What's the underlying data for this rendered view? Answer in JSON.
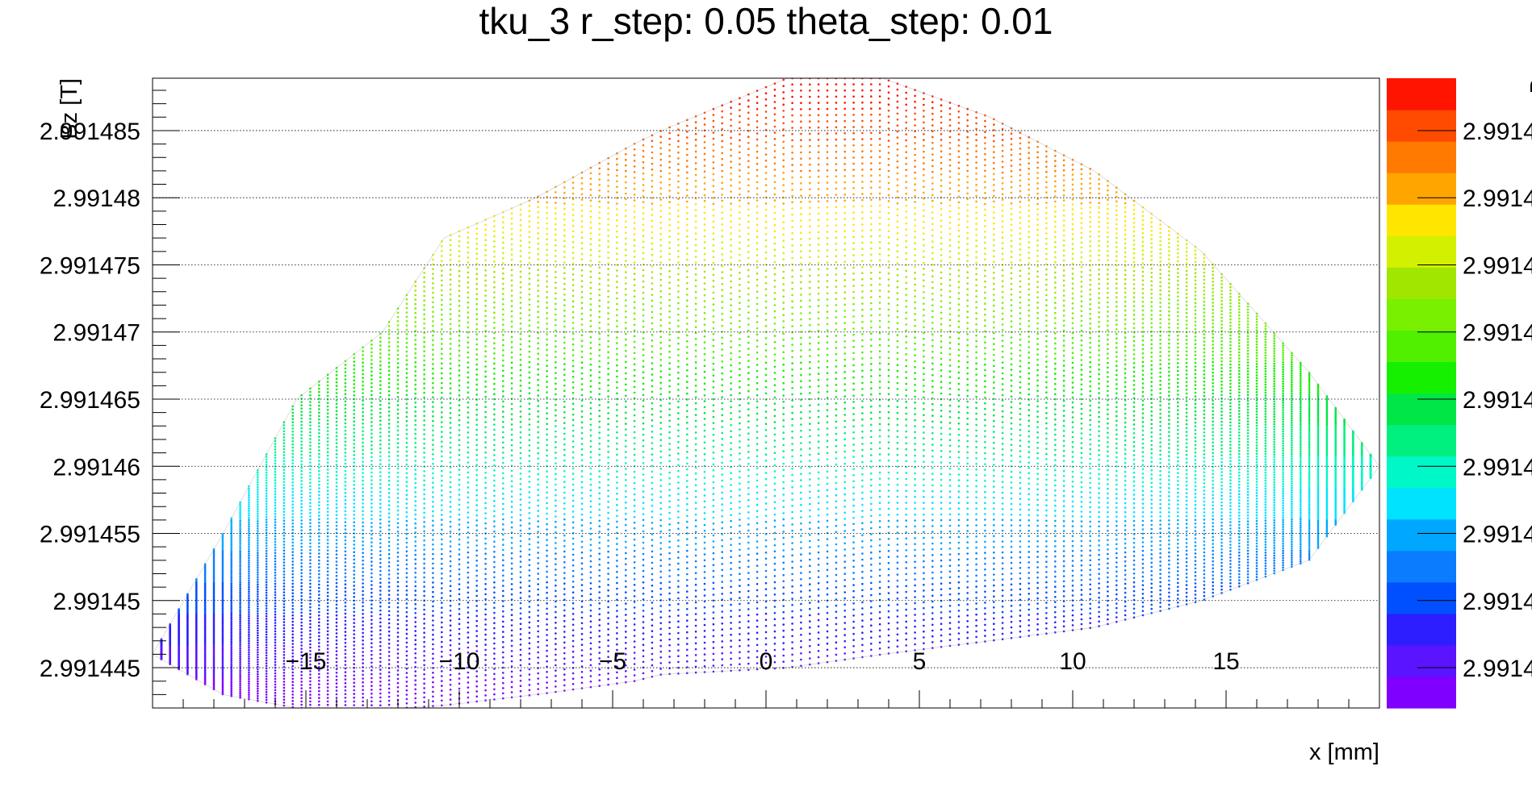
{
  "chart_data": {
    "type": "scatter",
    "title": "tku_3 r_step: 0.05 theta_step: 0.01",
    "xlabel": "x [mm]",
    "ylabel": "Bz [T]",
    "xlim": [
      -20,
      20
    ],
    "ylim": [
      2.991442,
      2.9914889
    ],
    "xticks": [
      {
        "value": -15,
        "label": "−15"
      },
      {
        "value": -10,
        "label": "−10"
      },
      {
        "value": -5,
        "label": "−5"
      },
      {
        "value": 0,
        "label": "0"
      },
      {
        "value": 5,
        "label": "5"
      },
      {
        "value": 10,
        "label": "10"
      },
      {
        "value": 15,
        "label": "15"
      }
    ],
    "yticks": [
      {
        "value": 2.991445,
        "label": "2.991445"
      },
      {
        "value": 2.99145,
        "label": "2.99145"
      },
      {
        "value": 2.991455,
        "label": "2.991455"
      },
      {
        "value": 2.99146,
        "label": "2.99146"
      },
      {
        "value": 2.991465,
        "label": "2.991465"
      },
      {
        "value": 2.99147,
        "label": "2.99147"
      },
      {
        "value": 2.991475,
        "label": "2.991475"
      },
      {
        "value": 2.99148,
        "label": "2.99148"
      },
      {
        "value": 2.991485,
        "label": "2.991485"
      }
    ],
    "grid": true,
    "colorbar": {
      "label": "B",
      "min": 2.991442,
      "max": 2.9914889,
      "tick_labels": [
        "2.9914",
        "2.9914",
        "2.9914",
        "2.9914",
        "2.9914",
        "2.9914",
        "2.9914",
        "2.9914",
        "2.9914"
      ],
      "colors": [
        "#7f00ff",
        "#5a14ff",
        "#2d1eff",
        "#0050ff",
        "#0a7dff",
        "#00a7ff",
        "#00e3ff",
        "#00f7c8",
        "#00f080",
        "#00e646",
        "#14f000",
        "#50f000",
        "#78f000",
        "#a0e600",
        "#d2f000",
        "#ffe600",
        "#ffa500",
        "#ff7a00",
        "#ff4b00",
        "#ff1400"
      ]
    },
    "envelope": {
      "x": [
        -20,
        -17.7,
        -15.3,
        -12.5,
        -10.5,
        -7.5,
        -4.3,
        -3.4,
        0.7,
        3.8,
        7.3,
        10.7,
        14.2,
        17.7,
        20
      ],
      "top": [
        2.991446,
        2.991455,
        2.991465,
        2.99147,
        2.991477,
        2.99148,
        2.991484,
        2.991485,
        2.9914889,
        2.9914889,
        2.991486,
        2.991482,
        2.991476,
        2.991467,
        2.99146
      ],
      "bottom": [
        2.991446,
        2.991443,
        2.991442,
        2.9914419,
        2.9914422,
        2.991443,
        2.991444,
        2.9914445,
        2.991445,
        2.991446,
        2.991447,
        2.991448,
        2.99145,
        2.991453,
        2.99146
      ]
    }
  }
}
